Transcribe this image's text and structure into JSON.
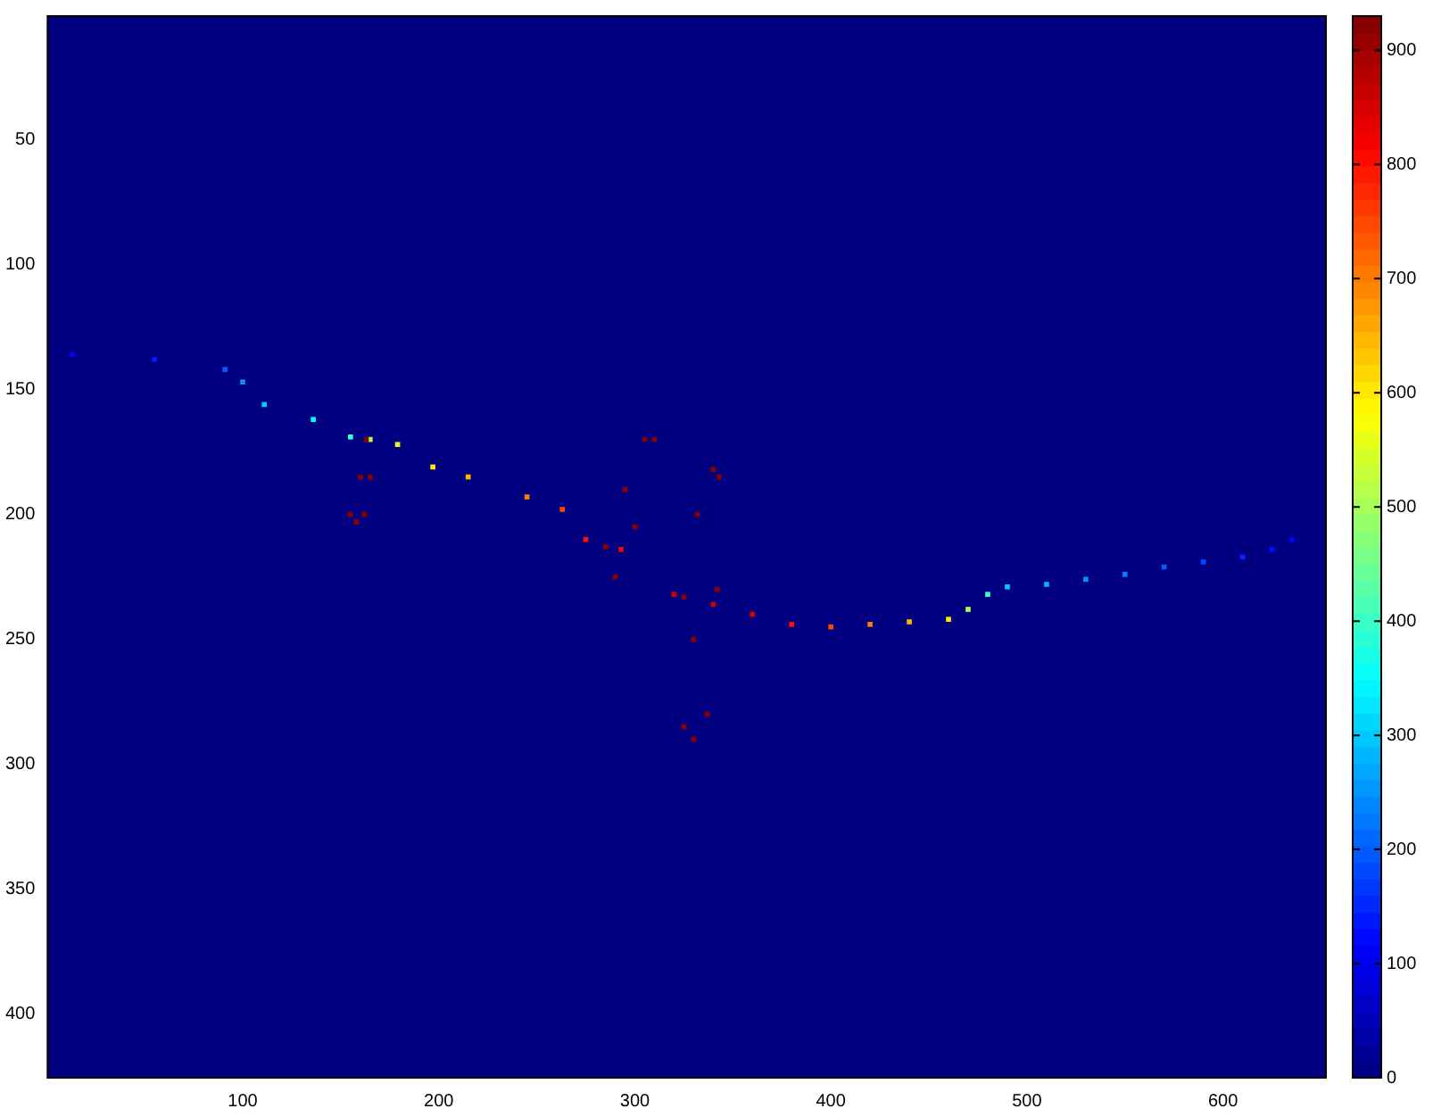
{
  "chart_data": {
    "type": "scatter",
    "marker": "square",
    "grid": false,
    "legend": false,
    "xlim": [
      0.5,
      652.5
    ],
    "ylim": [
      425.5,
      0.5
    ],
    "xticks": [
      100,
      200,
      300,
      400,
      500,
      600
    ],
    "yticks": [
      50,
      100,
      150,
      200,
      250,
      300,
      350,
      400
    ],
    "clim": [
      0,
      930
    ],
    "cticks": [
      0,
      100,
      200,
      300,
      400,
      500,
      600,
      700,
      800,
      900
    ],
    "x": [
      13,
      55,
      91,
      100,
      111,
      136,
      155,
      165,
      179,
      197,
      215,
      245,
      263,
      275,
      293,
      320,
      340,
      360,
      380,
      400,
      420,
      440,
      460,
      470,
      480,
      490,
      510,
      530,
      550,
      570,
      590,
      610,
      625,
      635,
      163,
      160,
      155,
      158,
      162,
      165,
      285,
      295,
      305,
      310,
      300,
      290,
      325,
      332,
      340,
      343,
      342,
      337,
      330,
      325,
      330
    ],
    "values": [
      136,
      138,
      142,
      147,
      156,
      162,
      169,
      170,
      172,
      181,
      185,
      193,
      198,
      210,
      214,
      232,
      236,
      240,
      244,
      245,
      244,
      243,
      242,
      238,
      232,
      229,
      228,
      226,
      224,
      221,
      219,
      217,
      214,
      210,
      170,
      185,
      200,
      203,
      200,
      185,
      213,
      190,
      170,
      170,
      205,
      225,
      233,
      200,
      182,
      185,
      230,
      280,
      290,
      285,
      250
    ],
    "cvalues": [
      120,
      140,
      200,
      250,
      300,
      350,
      400,
      500,
      550,
      600,
      650,
      700,
      750,
      800,
      820,
      850,
      860,
      850,
      800,
      750,
      700,
      650,
      600,
      500,
      400,
      300,
      280,
      250,
      230,
      200,
      180,
      150,
      130,
      120,
      920,
      920,
      920,
      920,
      920,
      920,
      920,
      920,
      920,
      920,
      920,
      920,
      920,
      920,
      920,
      920,
      920,
      920,
      920,
      920,
      920
    ]
  }
}
